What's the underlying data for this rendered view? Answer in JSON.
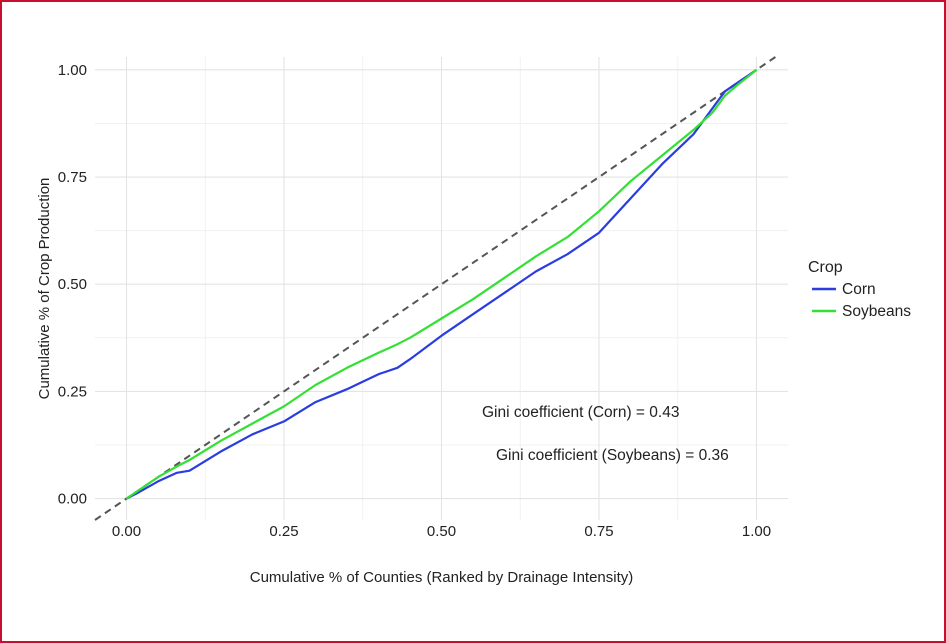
{
  "chart_data": {
    "type": "line",
    "title": "",
    "xlabel": "Cumulative % of Counties (Ranked by Drainage Intensity)",
    "ylabel": "Cumulative % of Crop Production",
    "xlim": [
      -0.05,
      1.05
    ],
    "ylim": [
      -0.05,
      1.03
    ],
    "x_ticks": [
      0,
      0.25,
      0.5,
      0.75,
      1
    ],
    "x_tick_labels": [
      "0.00",
      "0.25",
      "0.50",
      "0.75",
      "1.00"
    ],
    "y_ticks": [
      0,
      0.25,
      0.5,
      0.75,
      1
    ],
    "y_tick_labels": [
      "0.00",
      "0.25",
      "0.50",
      "0.75",
      "1.00"
    ],
    "grid": true,
    "legend": {
      "title": "Crop",
      "position": "right"
    },
    "series": [
      {
        "name": "Corn",
        "color": "#2b3de0",
        "x": [
          0,
          0.02,
          0.05,
          0.08,
          0.1,
          0.15,
          0.2,
          0.25,
          0.3,
          0.35,
          0.4,
          0.43,
          0.45,
          0.5,
          0.55,
          0.6,
          0.65,
          0.7,
          0.75,
          0.8,
          0.85,
          0.9,
          0.93,
          0.95,
          0.97,
          1
        ],
        "y": [
          0,
          0.015,
          0.04,
          0.06,
          0.065,
          0.11,
          0.15,
          0.18,
          0.225,
          0.255,
          0.29,
          0.305,
          0.325,
          0.38,
          0.43,
          0.48,
          0.53,
          0.57,
          0.62,
          0.7,
          0.78,
          0.85,
          0.91,
          0.95,
          0.97,
          1
        ]
      },
      {
        "name": "Soybeans",
        "color": "#33e033",
        "x": [
          0,
          0.02,
          0.05,
          0.08,
          0.1,
          0.15,
          0.2,
          0.25,
          0.3,
          0.35,
          0.4,
          0.43,
          0.45,
          0.5,
          0.55,
          0.6,
          0.65,
          0.7,
          0.75,
          0.8,
          0.85,
          0.9,
          0.93,
          0.95,
          0.97,
          1
        ],
        "y": [
          0,
          0.02,
          0.05,
          0.075,
          0.09,
          0.135,
          0.175,
          0.215,
          0.265,
          0.305,
          0.34,
          0.36,
          0.375,
          0.42,
          0.465,
          0.515,
          0.565,
          0.61,
          0.67,
          0.74,
          0.8,
          0.86,
          0.9,
          0.94,
          0.965,
          1
        ]
      },
      {
        "name": "",
        "color": "#555555",
        "style": "dashed",
        "x": [
          -0.05,
          1.03
        ],
        "y": [
          -0.05,
          1.03
        ]
      }
    ],
    "annotations": [
      {
        "text": "Gini coefficient (Corn) = 0.43"
      },
      {
        "text": "Gini coefficient (Soybeans) = 0.36"
      }
    ]
  }
}
